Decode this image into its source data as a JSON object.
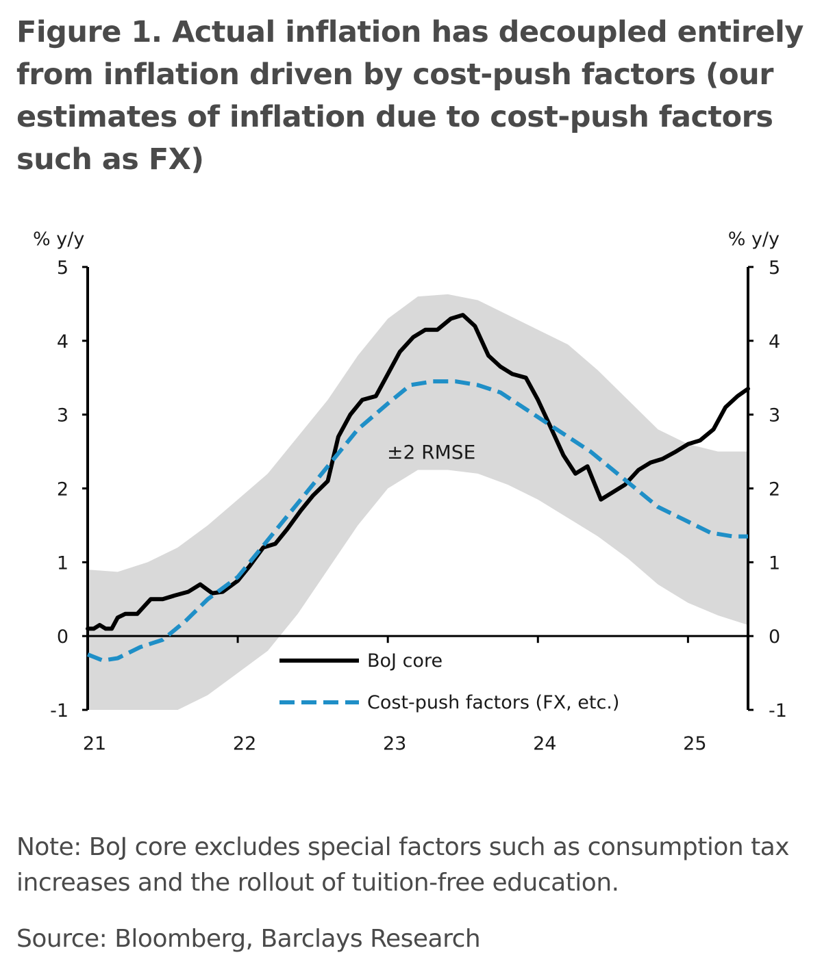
{
  "title": "Figure 1. Actual inflation has decoupled entirely from inflation driven by cost-push factors (our estimates of inflation due to cost-push factors such as FX)",
  "note": "Note: BoJ core excludes special factors such as consumption tax increases and the rollout of tuition-free education.",
  "source": "Source: Bloomberg, Barclays Research",
  "chart_data": {
    "type": "line",
    "y_unit_left": "% y/y",
    "y_unit_right": "% y/y",
    "ylim": [
      -1,
      5
    ],
    "yticks": [
      -1,
      0,
      1,
      2,
      3,
      4,
      5
    ],
    "xlim": [
      2021.0,
      2025.4
    ],
    "xticks": [
      2022,
      2023,
      2024,
      2025
    ],
    "xtick_labels": [
      {
        "x": 2021,
        "label": "21"
      },
      {
        "x": 2022,
        "label": "22"
      },
      {
        "x": 2023,
        "label": "23"
      },
      {
        "x": 2024,
        "label": "24"
      },
      {
        "x": 2025,
        "label": "25"
      }
    ],
    "band_label": "±2 RMSE",
    "band": {
      "x": [
        2021.0,
        2021.2,
        2021.4,
        2021.6,
        2021.8,
        2022.0,
        2022.2,
        2022.4,
        2022.6,
        2022.8,
        2023.0,
        2023.2,
        2023.4,
        2023.6,
        2023.8,
        2024.0,
        2024.2,
        2024.4,
        2024.6,
        2024.8,
        2025.0,
        2025.2,
        2025.4
      ],
      "lower": [
        -1.0,
        -1.0,
        -1.0,
        -1.0,
        -0.8,
        -0.5,
        -0.2,
        0.3,
        0.9,
        1.5,
        2.0,
        2.25,
        2.25,
        2.2,
        2.05,
        1.85,
        1.6,
        1.35,
        1.05,
        0.7,
        0.45,
        0.28,
        0.15
      ],
      "upper": [
        0.9,
        0.87,
        1.0,
        1.2,
        1.5,
        1.85,
        2.2,
        2.7,
        3.2,
        3.8,
        4.3,
        4.6,
        4.63,
        4.55,
        4.35,
        4.15,
        3.95,
        3.6,
        3.2,
        2.8,
        2.6,
        2.5,
        2.5
      ]
    },
    "series": [
      {
        "name": "BoJ core",
        "color": "#000000",
        "style": "solid",
        "x": [
          2021.0,
          2021.04,
          2021.08,
          2021.12,
          2021.16,
          2021.2,
          2021.25,
          2021.33,
          2021.42,
          2021.5,
          2021.58,
          2021.67,
          2021.75,
          2021.83,
          2021.9,
          2022.0,
          2022.08,
          2022.17,
          2022.25,
          2022.33,
          2022.42,
          2022.5,
          2022.6,
          2022.67,
          2022.75,
          2022.83,
          2022.92,
          2023.0,
          2023.08,
          2023.17,
          2023.25,
          2023.33,
          2023.42,
          2023.5,
          2023.58,
          2023.67,
          2023.75,
          2023.83,
          2023.92,
          2024.0,
          2024.08,
          2024.17,
          2024.25,
          2024.33,
          2024.42,
          2024.5,
          2024.58,
          2024.67,
          2024.75,
          2024.83,
          2024.92,
          2025.0,
          2025.08,
          2025.17,
          2025.25,
          2025.33,
          2025.4
        ],
        "y": [
          0.1,
          0.1,
          0.15,
          0.1,
          0.1,
          0.25,
          0.3,
          0.3,
          0.5,
          0.5,
          0.55,
          0.6,
          0.7,
          0.58,
          0.6,
          0.75,
          0.95,
          1.2,
          1.25,
          1.45,
          1.7,
          1.9,
          2.1,
          2.7,
          3.0,
          3.2,
          3.25,
          3.55,
          3.85,
          4.05,
          4.15,
          4.15,
          4.3,
          4.35,
          4.2,
          3.8,
          3.65,
          3.55,
          3.5,
          3.2,
          2.85,
          2.45,
          2.2,
          2.3,
          1.85,
          1.95,
          2.05,
          2.25,
          2.35,
          2.4,
          2.5,
          2.6,
          2.65,
          2.8,
          3.1,
          3.25,
          3.35
        ]
      },
      {
        "name": "Cost-push factors (FX, etc.)",
        "color": "#1f8fc7",
        "style": "dashed",
        "x": [
          2021.0,
          2021.1,
          2021.2,
          2021.35,
          2021.5,
          2021.65,
          2021.8,
          2022.0,
          2022.2,
          2022.4,
          2022.6,
          2022.8,
          2023.0,
          2023.15,
          2023.3,
          2023.45,
          2023.6,
          2023.75,
          2023.9,
          2024.05,
          2024.2,
          2024.35,
          2024.5,
          2024.65,
          2024.8,
          2025.0,
          2025.15,
          2025.3,
          2025.4
        ],
        "y": [
          -0.25,
          -0.33,
          -0.3,
          -0.15,
          -0.05,
          0.2,
          0.5,
          0.8,
          1.3,
          1.8,
          2.3,
          2.8,
          3.15,
          3.4,
          3.45,
          3.45,
          3.4,
          3.3,
          3.1,
          2.9,
          2.7,
          2.5,
          2.25,
          2.0,
          1.75,
          1.55,
          1.4,
          1.35,
          1.35
        ]
      }
    ],
    "legend_position": "bottom-center",
    "grid": false
  }
}
